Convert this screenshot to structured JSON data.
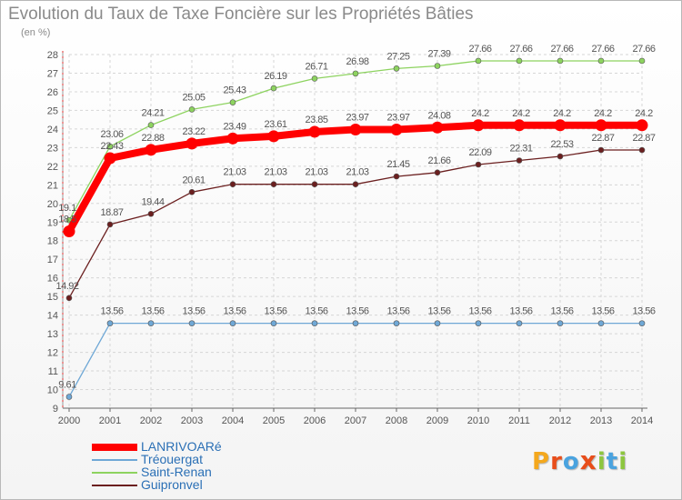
{
  "title": "Evolution du Taux de Taxe Foncière sur les Propriétés Bâties",
  "y_unit": "(en %)",
  "logo": {
    "letters": [
      "P",
      "r",
      "o",
      "x",
      "i",
      "t",
      "i"
    ],
    "colors": [
      "#f4a81d",
      "#e84e1b",
      "#4aa3df",
      "#e84e1b",
      "#8dc63f",
      "#4aa3df",
      "#8dc63f"
    ]
  },
  "chart_data": {
    "type": "line",
    "title": "Evolution du Taux de Taxe Foncière sur les Propriétés Bâties",
    "xlabel": "",
    "ylabel": "(en %)",
    "ylim": [
      9,
      28
    ],
    "y_ticks": [
      9,
      10,
      11,
      12,
      13,
      14,
      15,
      16,
      17,
      18,
      19,
      20,
      21,
      22,
      23,
      24,
      25,
      26,
      27,
      28
    ],
    "grid": true,
    "legend_position": "bottom-left",
    "x": [
      "2000",
      "2001",
      "2002",
      "2003",
      "2004",
      "2005",
      "2006",
      "2007",
      "2008",
      "2009",
      "2010",
      "2011",
      "2012",
      "2013",
      "2014"
    ],
    "series": [
      {
        "name": "LANRIVOARé",
        "color": "#ff0000",
        "style": "thick",
        "values": [
          18.5,
          22.43,
          22.88,
          23.22,
          23.49,
          23.61,
          23.85,
          23.97,
          23.97,
          24.08,
          24.2,
          24.2,
          24.2,
          24.2,
          24.2
        ],
        "labels": [
          "18.5",
          "22.43",
          "22.88",
          "23.22",
          "23.49",
          "23.61",
          "23.85",
          "23.97",
          "23.97",
          "24.08",
          "24.2",
          "24.2",
          "24.2",
          "24.2",
          "24.2"
        ]
      },
      {
        "name": "Tréouergat",
        "color": "#6fa8d6",
        "style": "thin",
        "values": [
          9.61,
          13.56,
          13.56,
          13.56,
          13.56,
          13.56,
          13.56,
          13.56,
          13.56,
          13.56,
          13.56,
          13.56,
          13.56,
          13.56,
          13.56
        ],
        "labels": [
          "9.61",
          "13.56",
          "13.56",
          "13.56",
          "13.56",
          "13.56",
          "13.56",
          "13.56",
          "13.56",
          "13.56",
          "13.56",
          "13.56",
          "13.56",
          "13.56",
          "13.56"
        ]
      },
      {
        "name": "Saint-Renan",
        "color": "#8dd35f",
        "style": "thin",
        "values": [
          19.1,
          23.06,
          24.21,
          25.05,
          25.43,
          26.19,
          26.71,
          26.98,
          27.25,
          27.39,
          27.66,
          27.66,
          27.66,
          27.66,
          27.66
        ],
        "labels": [
          "19.1",
          "23.06",
          "24.21",
          "25.05",
          "25.43",
          "26.19",
          "26.71",
          "26.98",
          "27.25",
          "27.39",
          "27.66",
          "27.66",
          "27.66",
          "27.66",
          "27.66"
        ]
      },
      {
        "name": "Guipronvel",
        "color": "#6b1f1f",
        "style": "thin",
        "values": [
          14.92,
          18.87,
          19.44,
          20.61,
          21.03,
          21.03,
          21.03,
          21.03,
          21.45,
          21.66,
          22.09,
          22.31,
          22.53,
          22.87,
          22.87
        ],
        "labels": [
          "14.92",
          "18.87",
          "19.44",
          "20.61",
          "21.03",
          "21.03",
          "21.03",
          "21.03",
          "21.45",
          "21.66",
          "22.09",
          "22.31",
          "22.53",
          "22.87",
          "22.87"
        ]
      }
    ]
  }
}
